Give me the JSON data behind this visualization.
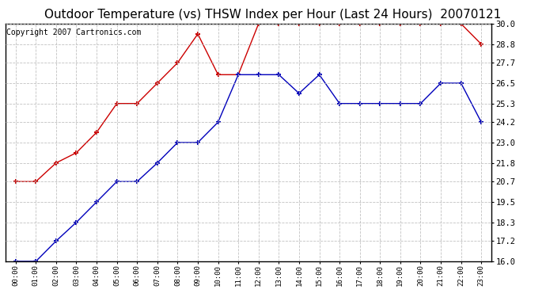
{
  "title": "Outdoor Temperature (vs) THSW Index per Hour (Last 24 Hours)  20070121",
  "copyright": "Copyright 2007 Cartronics.com",
  "hours": [
    "00:00",
    "01:00",
    "02:00",
    "03:00",
    "04:00",
    "05:00",
    "06:00",
    "07:00",
    "08:00",
    "09:00",
    "10:00",
    "11:00",
    "12:00",
    "13:00",
    "14:00",
    "15:00",
    "16:00",
    "17:00",
    "18:00",
    "19:00",
    "20:00",
    "21:00",
    "22:00",
    "23:00"
  ],
  "blue_data": [
    16.0,
    16.0,
    17.2,
    18.3,
    19.5,
    20.7,
    20.7,
    21.8,
    23.0,
    23.0,
    24.2,
    27.0,
    27.0,
    27.0,
    25.9,
    27.0,
    25.3,
    25.3,
    25.3,
    25.3,
    25.3,
    26.5,
    26.5,
    24.2
  ],
  "red_data": [
    20.7,
    20.7,
    21.8,
    22.4,
    23.6,
    25.3,
    25.3,
    26.5,
    27.7,
    29.4,
    27.0,
    27.0,
    30.0,
    30.0,
    30.0,
    30.0,
    30.0,
    30.0,
    30.0,
    30.0,
    30.0,
    30.0,
    30.0,
    28.8
  ],
  "ylim_min": 16.0,
  "ylim_max": 30.0,
  "yticks": [
    16.0,
    17.2,
    18.3,
    19.5,
    20.7,
    21.8,
    23.0,
    24.2,
    25.3,
    26.5,
    27.7,
    28.8,
    30.0
  ],
  "blue_color": "#0000bb",
  "red_color": "#cc0000",
  "grid_color": "#bbbbbb",
  "bg_color": "#ffffff",
  "title_fontsize": 11,
  "copyright_fontsize": 7
}
